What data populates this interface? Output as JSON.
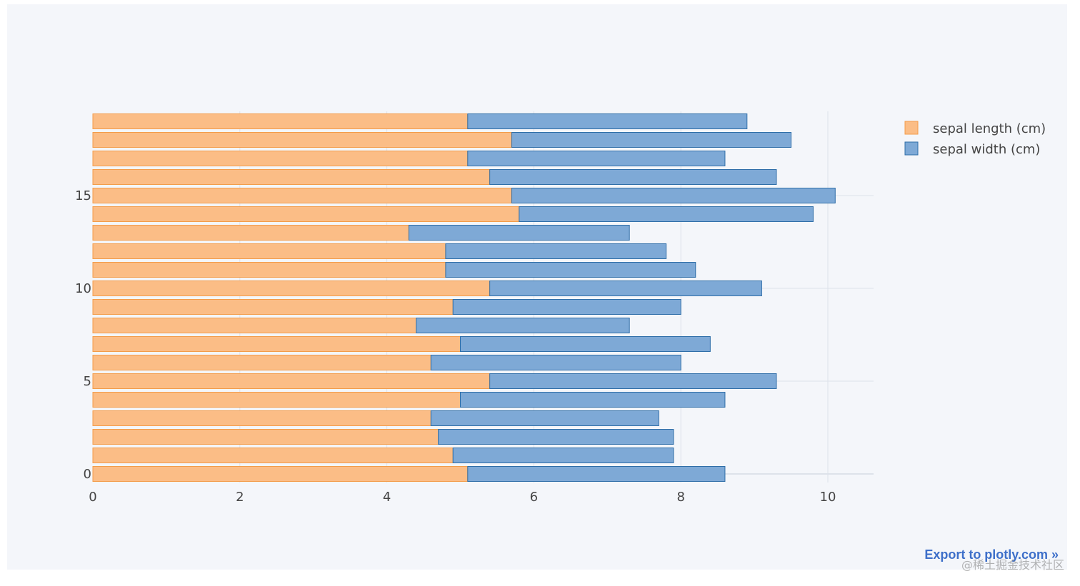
{
  "colors": {
    "background": "#f4f6fa",
    "grid": "#dde2ea",
    "series_fill": [
      "#fbbd86",
      "#7ea9d6"
    ],
    "series_stroke": [
      "#f39c4a",
      "#2f6ea8"
    ],
    "accent_link": "#3d6fc9"
  },
  "export_link": "Export to plotly.com »",
  "watermark": "@稀土掘金技术社区",
  "chart_data": {
    "type": "bar",
    "orientation": "horizontal",
    "barmode": "stack",
    "title": "",
    "xlabel": "",
    "ylabel": "",
    "categories": [
      0,
      1,
      2,
      3,
      4,
      5,
      6,
      7,
      8,
      9,
      10,
      11,
      12,
      13,
      14,
      15,
      16,
      17,
      18,
      19
    ],
    "yticks": [
      0,
      5,
      10,
      15
    ],
    "xticks": [
      0,
      2,
      4,
      6,
      8,
      10
    ],
    "xlim": [
      0,
      10.6
    ],
    "grid": true,
    "legend_position": "top-right",
    "series": [
      {
        "name": "sepal length (cm)",
        "values": [
          5.1,
          4.9,
          4.7,
          4.6,
          5.0,
          5.4,
          4.6,
          5.0,
          4.4,
          4.9,
          5.4,
          4.8,
          4.8,
          4.3,
          5.8,
          5.7,
          5.4,
          5.1,
          5.7,
          5.1
        ]
      },
      {
        "name": "sepal width (cm)",
        "values": [
          3.5,
          3.0,
          3.2,
          3.1,
          3.6,
          3.9,
          3.4,
          3.4,
          2.9,
          3.1,
          3.7,
          3.4,
          3.0,
          3.0,
          4.0,
          4.4,
          3.9,
          3.5,
          3.8,
          3.8
        ]
      }
    ]
  }
}
